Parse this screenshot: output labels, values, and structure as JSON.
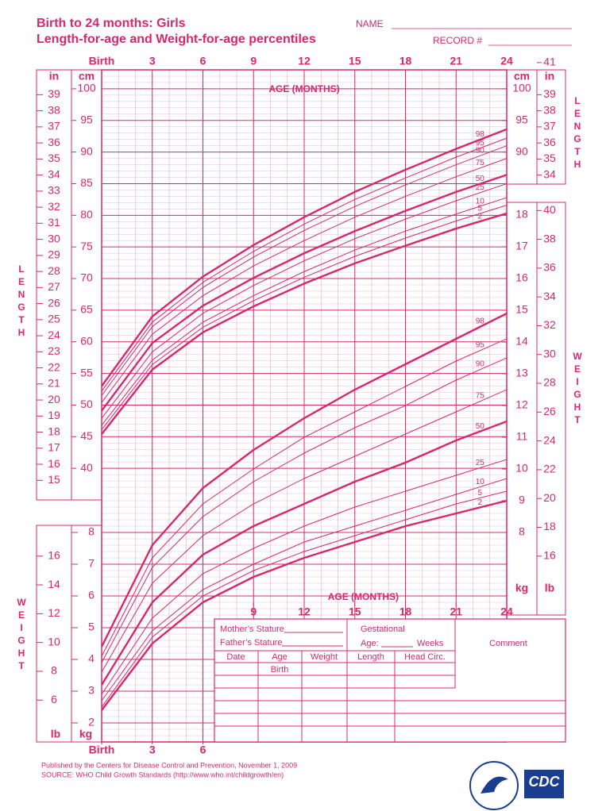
{
  "header": {
    "title": "Birth to 24 months: Girls",
    "subtitle": "Length-for-age and Weight-for-age percentiles",
    "name_label": "NAME",
    "record_label": "RECORD #"
  },
  "chart_data": [
    {
      "type": "line",
      "title": "AGE (MONTHS)",
      "ylabel": "LENGTH",
      "y_unit": "cm",
      "y2_unit": "in",
      "color": "#d6286f",
      "x": [
        0,
        3,
        6,
        9,
        12,
        15,
        18,
        21,
        24
      ],
      "xlim": [
        0,
        24
      ],
      "xticks": [
        {
          "value": 0,
          "label": "Birth"
        },
        3,
        6,
        9,
        12,
        15,
        18,
        21,
        24
      ],
      "ylim": [
        35,
        103
      ],
      "yticks": [
        40,
        45,
        50,
        55,
        60,
        65,
        70,
        75,
        80,
        85,
        90,
        95,
        100
      ],
      "y2lim": [
        13.78,
        40.55
      ],
      "y2ticks": [
        15,
        16,
        17,
        18,
        19,
        20,
        21,
        22,
        23,
        24,
        25,
        26,
        27,
        28,
        29,
        30,
        31,
        32,
        33,
        34,
        35,
        36,
        37,
        38,
        39
      ],
      "right_yticks": [
        90,
        95,
        100
      ],
      "right_y2ticks": [
        34,
        35,
        36,
        37,
        38,
        39,
        41
      ],
      "grid": true,
      "series": [
        {
          "name": "2",
          "values": [
            45.4,
            55.6,
            61.5,
            65.6,
            69.2,
            72.4,
            75.2,
            77.9,
            80.3
          ]
        },
        {
          "name": "5",
          "values": [
            46.1,
            56.4,
            62.3,
            66.5,
            70.2,
            73.5,
            76.4,
            79.1,
            81.6
          ]
        },
        {
          "name": "10",
          "values": [
            46.8,
            57.1,
            63.1,
            67.3,
            71.1,
            74.5,
            77.5,
            80.2,
            82.8
          ]
        },
        {
          "name": "25",
          "values": [
            47.9,
            58.4,
            64.5,
            68.9,
            72.8,
            76.3,
            79.4,
            82.3,
            85.0
          ]
        },
        {
          "name": "50",
          "values": [
            49.1,
            59.8,
            65.7,
            70.1,
            74.0,
            77.5,
            80.7,
            83.7,
            86.4
          ]
        },
        {
          "name": "75",
          "values": [
            50.4,
            61.2,
            67.3,
            72.0,
            76.0,
            79.7,
            83.0,
            86.1,
            89.0
          ]
        },
        {
          "name": "90",
          "values": [
            51.5,
            62.4,
            68.6,
            73.4,
            77.6,
            81.4,
            84.8,
            88.0,
            91.0
          ]
        },
        {
          "name": "95",
          "values": [
            52.2,
            63.1,
            69.4,
            74.3,
            78.6,
            82.5,
            85.9,
            89.2,
            92.2
          ]
        },
        {
          "name": "98",
          "values": [
            53.0,
            64.0,
            70.3,
            75.3,
            79.7,
            83.7,
            87.2,
            90.5,
            93.6
          ]
        }
      ]
    },
    {
      "type": "line",
      "title": "AGE (MONTHS)",
      "ylabel": "WEIGHT",
      "y_unit": "kg",
      "y2_unit": "lb",
      "color": "#d6286f",
      "x": [
        0,
        3,
        6,
        9,
        12,
        15,
        18,
        21,
        24
      ],
      "xlim": [
        0,
        24
      ],
      "xticks": [
        {
          "value": 0,
          "label": "Birth"
        },
        3,
        6,
        9,
        12,
        15,
        18,
        21,
        24
      ],
      "ylim": [
        1.4,
        18.65
      ],
      "yticks": [
        2,
        3,
        4,
        5,
        6,
        7,
        8
      ],
      "y2lim": [
        3.09,
        41.12
      ],
      "y2ticks": [
        6,
        8,
        10,
        12,
        14,
        16
      ],
      "right_yticks": [
        8,
        9,
        10,
        11,
        12,
        13,
        14,
        15,
        16,
        17,
        18
      ],
      "right_y2ticks": [
        16,
        18,
        20,
        22,
        24,
        26,
        28,
        30,
        32,
        34,
        36,
        38,
        40
      ],
      "grid": true,
      "series": [
        {
          "name": "2",
          "values": [
            2.4,
            4.5,
            5.8,
            6.6,
            7.2,
            7.7,
            8.2,
            8.6,
            9.0
          ]
        },
        {
          "name": "5",
          "values": [
            2.5,
            4.7,
            6.0,
            6.8,
            7.4,
            7.9,
            8.4,
            8.9,
            9.3
          ]
        },
        {
          "name": "10",
          "values": [
            2.7,
            4.9,
            6.2,
            7.0,
            7.7,
            8.2,
            8.7,
            9.2,
            9.7
          ]
        },
        {
          "name": "25",
          "values": [
            2.9,
            5.3,
            6.7,
            7.5,
            8.2,
            8.8,
            9.3,
            9.8,
            10.3
          ]
        },
        {
          "name": "50",
          "values": [
            3.2,
            5.8,
            7.3,
            8.2,
            8.9,
            9.6,
            10.2,
            10.9,
            11.5
          ]
        },
        {
          "name": "75",
          "values": [
            3.6,
            6.4,
            7.9,
            8.9,
            9.7,
            10.4,
            11.1,
            11.8,
            12.5
          ]
        },
        {
          "name": "90",
          "values": [
            3.9,
            6.9,
            8.5,
            9.6,
            10.5,
            11.3,
            12.0,
            12.8,
            13.5
          ]
        },
        {
          "name": "95",
          "values": [
            4.1,
            7.2,
            8.9,
            10.0,
            11.0,
            11.8,
            12.6,
            13.4,
            14.1
          ]
        },
        {
          "name": "98",
          "values": [
            4.4,
            7.6,
            9.4,
            10.6,
            11.6,
            12.5,
            13.3,
            14.1,
            14.9
          ]
        }
      ]
    }
  ],
  "form": {
    "mother": "Mother’s Stature",
    "father": "Father’s Stature",
    "gestational": "Gestational",
    "age": "Age:",
    "weeks": "Weeks",
    "comment": "Comment",
    "columns": [
      "Date",
      "Age",
      "Weight",
      "Length",
      "Head  Circ."
    ],
    "first_age": "Birth"
  },
  "footer": {
    "published": "Published by the Centers for Disease Control and Prevention, November 1, 2009",
    "source": "SOURCE:  WHO Child Growth Standards (http://www.who.int/childgrowth/en)",
    "logo": "CDC"
  }
}
